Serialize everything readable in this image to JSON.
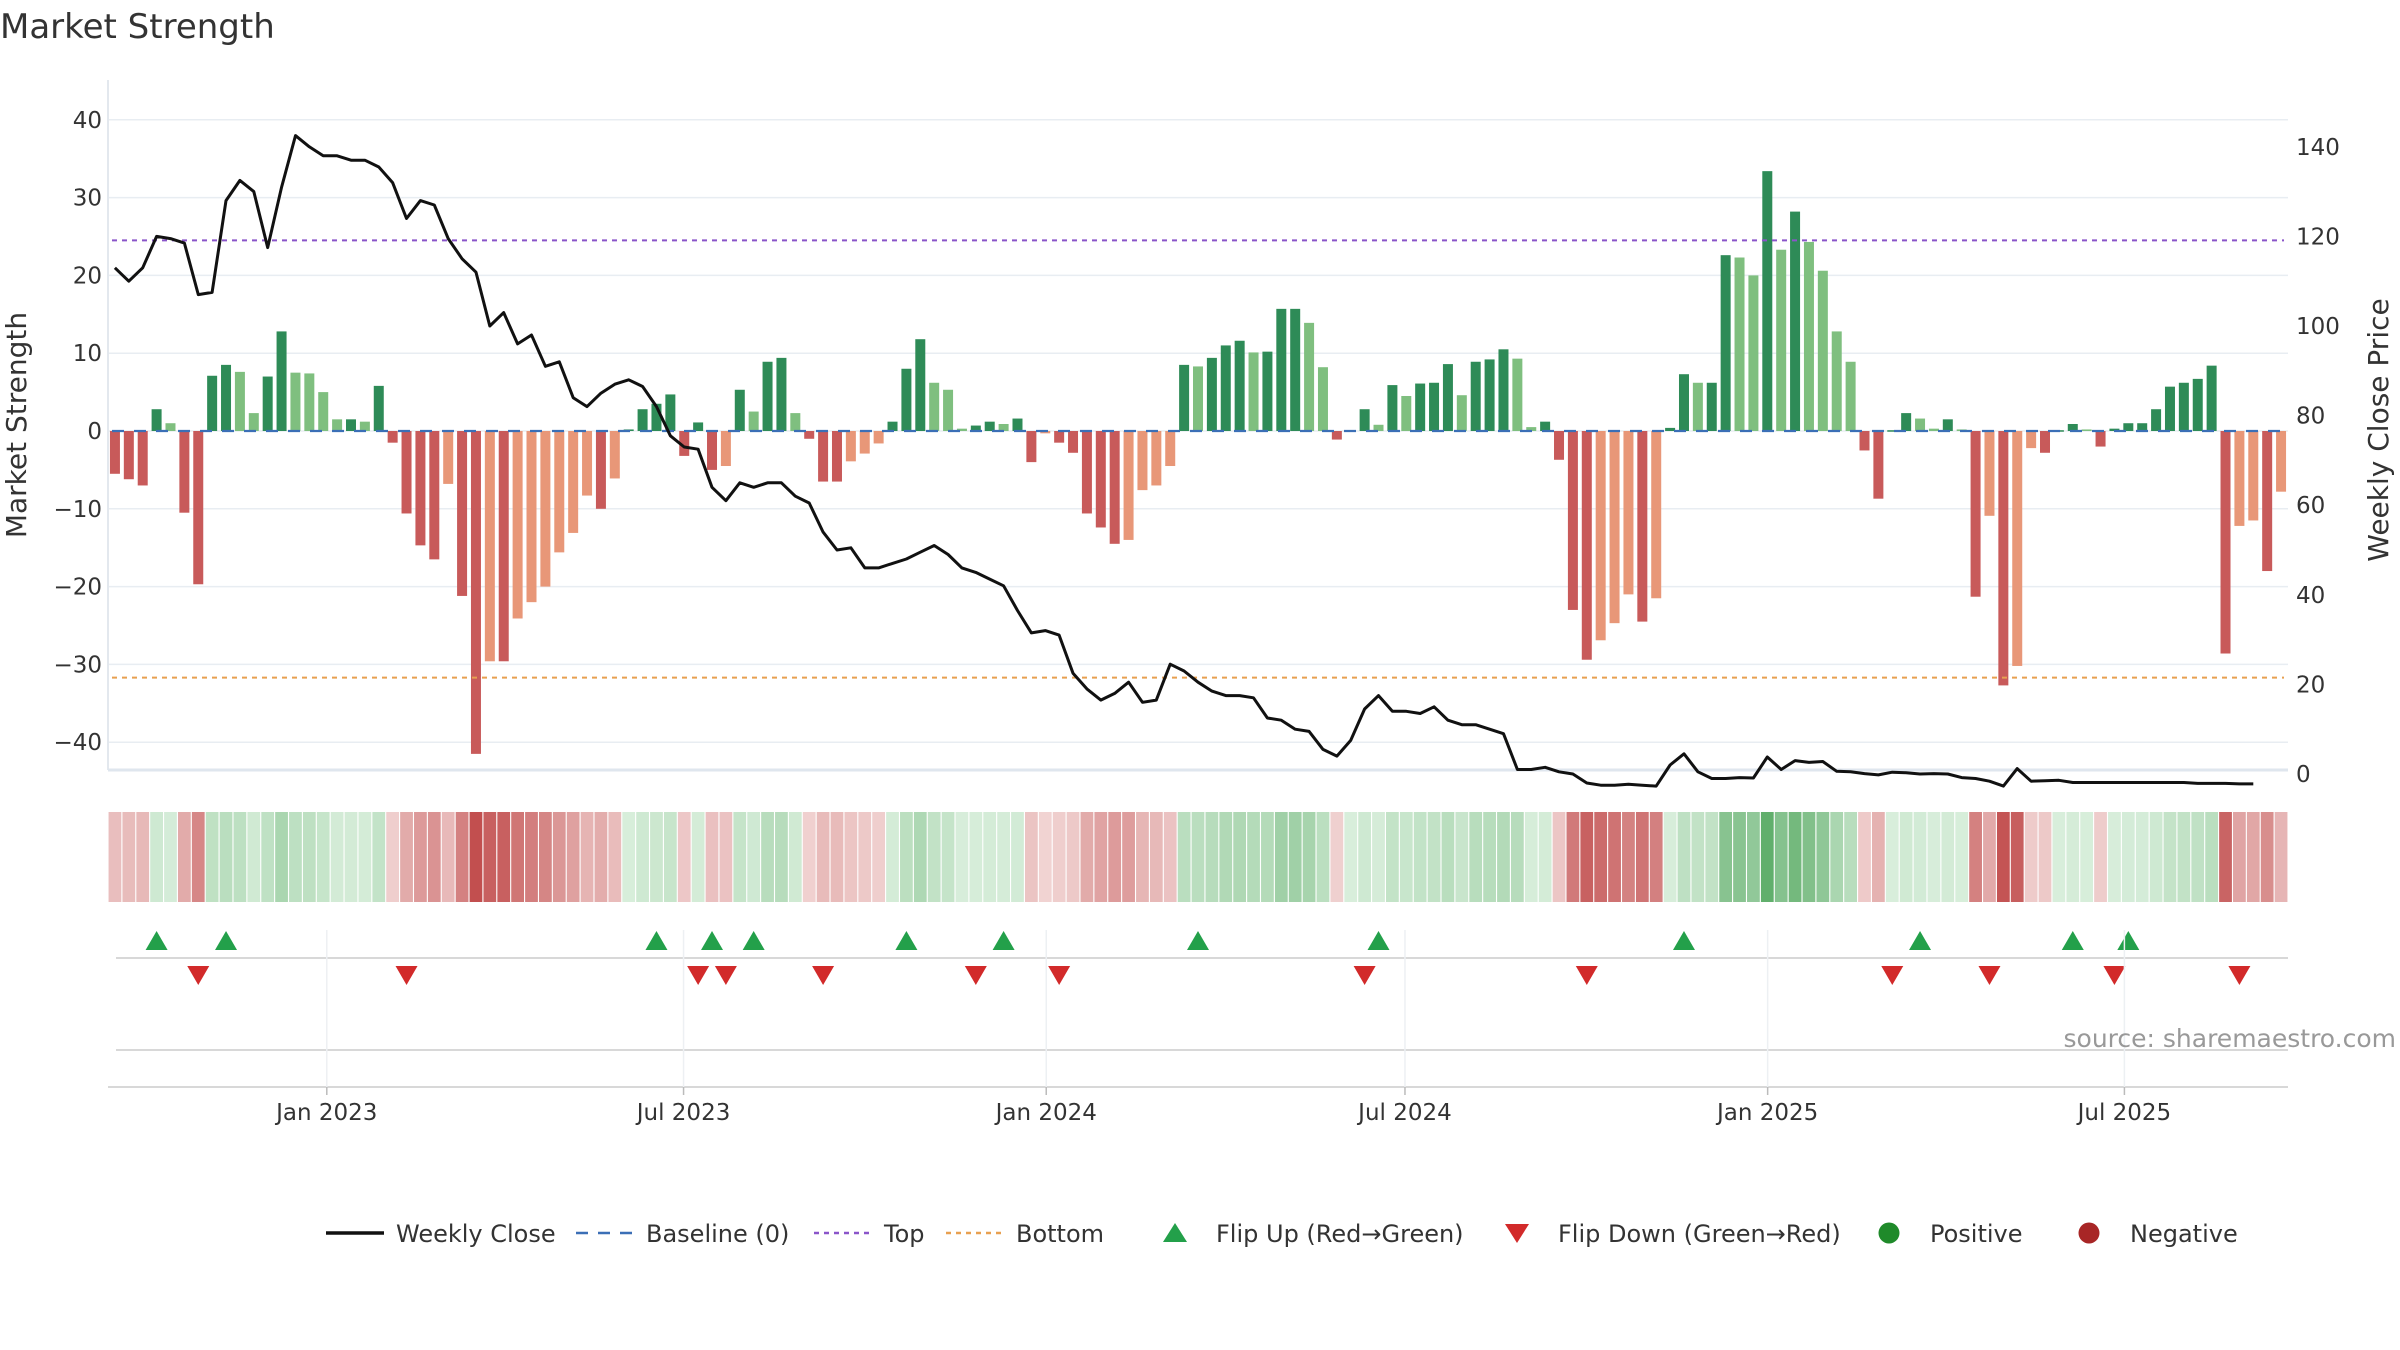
{
  "chart_data": {
    "type": "bar",
    "title": "Market Strength",
    "ylabel": "Market Strength",
    "y2label": "Weekly Close Price",
    "ylim": [
      -44,
      44
    ],
    "y2lim": [
      0,
      150
    ],
    "yticks": [
      40,
      30,
      20,
      10,
      0,
      -10,
      -20,
      -30,
      -40
    ],
    "ytick_labels": [
      "40",
      "30",
      "20",
      "10",
      "0",
      "−10",
      "−20",
      "−30",
      "−40"
    ],
    "y2ticks": [
      140,
      120,
      100,
      80,
      60,
      40,
      20,
      0
    ],
    "x_start": "2022-09-12",
    "x_end": "2025-09-22",
    "xticks": [
      {
        "date": "2023-01-01",
        "label": "Jan 2023"
      },
      {
        "date": "2023-07-01",
        "label": "Jul 2023"
      },
      {
        "date": "2024-01-01",
        "label": "Jan 2024"
      },
      {
        "date": "2024-07-01",
        "label": "Jul 2024"
      },
      {
        "date": "2025-01-01",
        "label": "Jan 2025"
      },
      {
        "date": "2025-07-01",
        "label": "Jul 2025"
      }
    ],
    "top_level": 24.5,
    "bottom_level": -31.7,
    "strength": [
      -5.5,
      -6.2,
      -7,
      2.8,
      1,
      -10.5,
      -19.7,
      7.1,
      8.5,
      7.6,
      2.3,
      7,
      12.8,
      7.5,
      7.4,
      5,
      1.5,
      1.5,
      1.2,
      5.8,
      -1.5,
      -10.6,
      -14.7,
      -16.5,
      -6.8,
      -21.2,
      -41.5,
      -29.6,
      -29.6,
      -24.1,
      -22,
      -20,
      -15.6,
      -13.1,
      -8.3,
      -10,
      -6.1,
      0.2,
      2.8,
      3.5,
      4.7,
      -3.2,
      1.1,
      -5,
      -4.5,
      5.3,
      2.5,
      8.9,
      9.4,
      2.3,
      -1,
      -6.5,
      -6.5,
      -3.9,
      -2.9,
      -1.6,
      1.2,
      8,
      11.8,
      6.2,
      5.3,
      0.3,
      0.7,
      1.2,
      0.9,
      1.6,
      -4,
      -0.3,
      -1.5,
      -2.8,
      -10.6,
      -12.4,
      -14.5,
      -14,
      -7.6,
      -7,
      -4.5,
      8.5,
      8.3,
      9.4,
      11,
      11.6,
      10.1,
      10.2,
      15.7,
      15.7,
      13.9,
      8.2,
      -1.1,
      0.1,
      2.8,
      0.8,
      5.9,
      4.5,
      6.1,
      6.2,
      8.6,
      4.6,
      8.9,
      9.2,
      10.5,
      9.3,
      0.5,
      1.2,
      -3.7,
      -23,
      -29.4,
      -26.9,
      -24.7,
      -21,
      -24.5,
      -21.5,
      0.4,
      7.3,
      6.2,
      6.2,
      22.6,
      22.3,
      20,
      33.4,
      23.3,
      28.2,
      24.3,
      20.6,
      12.8,
      8.9,
      -2.5,
      -8.7,
      0.1,
      2.3,
      1.6,
      0.3,
      1.5,
      0.2,
      -21.3,
      -10.9,
      -32.7,
      -30.2,
      -2.2,
      -2.8,
      0.1,
      0.9,
      0.2,
      -2,
      0.3,
      1,
      1,
      2.8,
      5.7,
      6.2,
      6.7,
      8.4,
      -28.6,
      -12.2,
      -11.5,
      -18,
      -7.8
    ],
    "close": [
      113,
      110,
      113,
      120,
      119.5,
      118.5,
      107,
      107.5,
      128,
      132.5,
      130,
      117.5,
      131,
      142.5,
      140,
      138,
      138,
      137,
      137,
      135.5,
      132,
      124,
      128,
      127,
      119.5,
      115,
      112,
      100,
      103,
      96,
      98,
      91,
      92,
      84,
      82,
      85,
      87,
      88,
      86.5,
      82,
      75.5,
      73,
      72.5,
      64,
      61,
      65,
      64,
      65,
      65,
      62,
      60.5,
      54,
      50,
      50.5,
      46,
      46,
      47,
      48,
      49.5,
      51,
      49,
      46,
      45,
      43.5,
      42,
      36.5,
      31.5,
      32,
      31,
      22.5,
      19,
      16.5,
      18,
      20.5,
      16,
      16.5,
      24.5,
      23,
      20.5,
      18.5,
      17.5,
      17.5,
      17,
      12.5,
      12,
      10,
      9.5,
      5.5,
      4,
      7.5,
      14.5,
      17.5,
      14,
      14,
      13.5,
      15,
      12,
      11,
      11,
      10,
      9,
      1,
      1,
      1.5,
      0.5,
      0,
      -2,
      -2.5,
      -2.5,
      -2.3,
      -2.5,
      -2.7,
      2,
      4.5,
      0.5,
      -1,
      -1,
      -0.8,
      -0.9,
      3.8,
      1,
      3,
      2.6,
      2.8,
      0.6,
      0.5,
      0.1,
      -0.2,
      0.4,
      0.3,
      0,
      0.1,
      0,
      -0.8,
      -1,
      -1.6,
      -2.7,
      1.2,
      -1.6,
      -1.5,
      -1.4,
      -1.9,
      -1.9,
      -1.9,
      -1.9,
      -1.9,
      -1.9,
      -1.9,
      -1.9,
      -1.9,
      -2.1,
      -2.1,
      -2.1,
      -2.2,
      -2.2
    ],
    "flip_up": [
      3,
      8,
      39,
      43,
      46,
      57,
      64,
      78,
      91,
      113,
      130,
      141,
      145
    ],
    "flip_down": [
      6,
      21,
      42,
      44,
      51,
      62,
      68,
      90,
      106,
      128,
      135,
      144,
      153
    ],
    "legend": [
      {
        "label": "Weekly Close",
        "kind": "line"
      },
      {
        "label": "Baseline (0)",
        "kind": "dashed"
      },
      {
        "label": "Top",
        "kind": "dotted"
      },
      {
        "label": "Bottom",
        "kind": "dotted"
      },
      {
        "label": "Flip Up (Red→Green)",
        "kind": "triangle-up"
      },
      {
        "label": "Flip Down (Green→Red)",
        "kind": "triangle-down"
      },
      {
        "label": "Positive",
        "kind": "dot"
      },
      {
        "label": "Negative",
        "kind": "dot"
      }
    ],
    "source_text": "source: sharemaestro.com"
  },
  "colors": {
    "green_strong": "#2e8b57",
    "green_light": "#7fbf7f",
    "red_strong": "#c85a5a",
    "red_light": "#e89778",
    "close_line": "#111111",
    "baseline": "#3b6fb6",
    "top": "#8a55c9",
    "bottom": "#e8a050",
    "flip_up": "#23a04a",
    "flip_down": "#d22a2a",
    "positive": "#1f8a2a",
    "negative": "#a82626",
    "grid": "#e8edf2",
    "text": "#333333"
  }
}
